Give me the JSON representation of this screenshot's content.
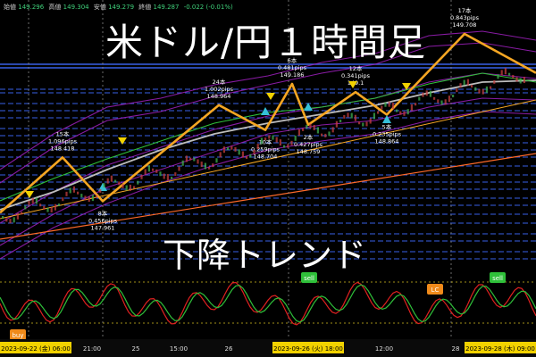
{
  "header": {
    "ohlc": [
      {
        "label": "始値",
        "value": "149.296"
      },
      {
        "label": "高値",
        "value": "149.304"
      },
      {
        "label": "安値",
        "value": "149.279"
      },
      {
        "label": "終値",
        "value": "149.287"
      },
      {
        "label": "",
        "value": "-0.022 (-0.01%)"
      }
    ]
  },
  "title": "米ドル/円１時間足",
  "trend_text": "下降トレンド",
  "colors": {
    "zigzag": "#f5a623",
    "band": "#a020c0",
    "ma": "#bdbdbd",
    "level": "#3f6cff",
    "trendline": "#ff6a2a",
    "signal_down": "#f2d200",
    "signal_up": "#35c0d8",
    "osc_red": "#e02020",
    "osc_green": "#2fc03a"
  },
  "chart_data": {
    "type": "line",
    "ylim": [
      147.75,
      149.95
    ],
    "zigzag": [
      {
        "label": "",
        "price": 147.84
      },
      {
        "label": "15本\n1.096pips\n148.418",
        "price": 148.418
      },
      {
        "label": "8本\n0.456pips\n147.961",
        "price": 147.961
      },
      {
        "label": "24本\n1.002pips\n148.964",
        "price": 148.964
      },
      {
        "label": "10本\n0.259pips\n148.704",
        "price": 148.704
      },
      {
        "label": "6本\n0.481pips\n149.186",
        "price": 149.186
      },
      {
        "label": "2本\n0.427pips\n148.759",
        "price": 148.759
      },
      {
        "label": "12本\n0.341pips\n149.1",
        "price": 149.1
      },
      {
        "label": "5本\n0.235pips\n148.864",
        "price": 148.864
      },
      {
        "label": "17本\n0.843pips\n149.708",
        "price": 149.708
      },
      {
        "label": "",
        "price": 149.3
      }
    ],
    "oscillator_signals": [
      {
        "label": "sell"
      },
      {
        "label": "LC"
      },
      {
        "label": "sell"
      },
      {
        "label": "buy"
      }
    ],
    "x_ticks": [
      {
        "label": "2023-09-22 (金)  06:00"
      },
      {
        "label": "21:00"
      },
      {
        "label": "25"
      },
      {
        "label": "15:00"
      },
      {
        "label": "26"
      },
      {
        "label": "2023-09-26 (火)  18:00"
      },
      {
        "label": "12:00"
      },
      {
        "label": "28"
      },
      {
        "label": "2023-09-28 (木)  09:00"
      }
    ]
  }
}
